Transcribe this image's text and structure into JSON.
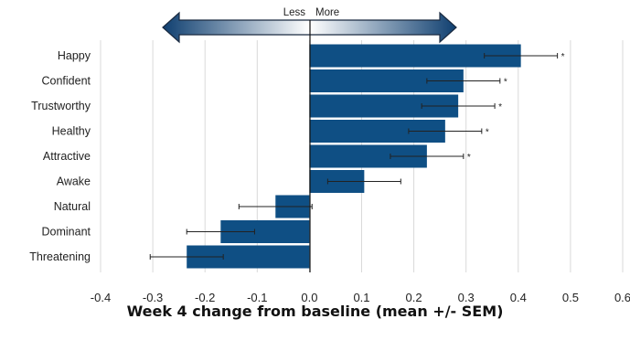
{
  "chart_data": {
    "type": "bar",
    "orientation": "horizontal",
    "categories": [
      "Happy",
      "Confident",
      "Trustworthy",
      "Healthy",
      "Attractive",
      "Awake",
      "Natural",
      "Dominant",
      "Threatening"
    ],
    "values": [
      0.405,
      0.295,
      0.285,
      0.26,
      0.225,
      0.105,
      -0.065,
      -0.17,
      -0.235
    ],
    "errors": [
      0.07,
      0.07,
      0.07,
      0.07,
      0.07,
      0.07,
      0.07,
      0.065,
      0.07
    ],
    "significance": [
      "*",
      "*",
      "*",
      "*",
      "*",
      "",
      "",
      "",
      ""
    ],
    "xlabel": "Week 4 change from baseline (mean +/- SEM)",
    "ylabel": "",
    "xlim": [
      -0.4,
      0.6
    ],
    "xticks": [
      "-0.4",
      "-0.3",
      "-0.2",
      "-0.1",
      "0.0",
      "0.1",
      "0.2",
      "0.3",
      "0.4",
      "0.5",
      "0.6"
    ],
    "grid": "vertical",
    "arrow_labels": {
      "left": "Less",
      "right": "More"
    },
    "colors": {
      "bar": "#0f4f84",
      "grid": "#d9d9d9",
      "error": "#222222"
    }
  }
}
